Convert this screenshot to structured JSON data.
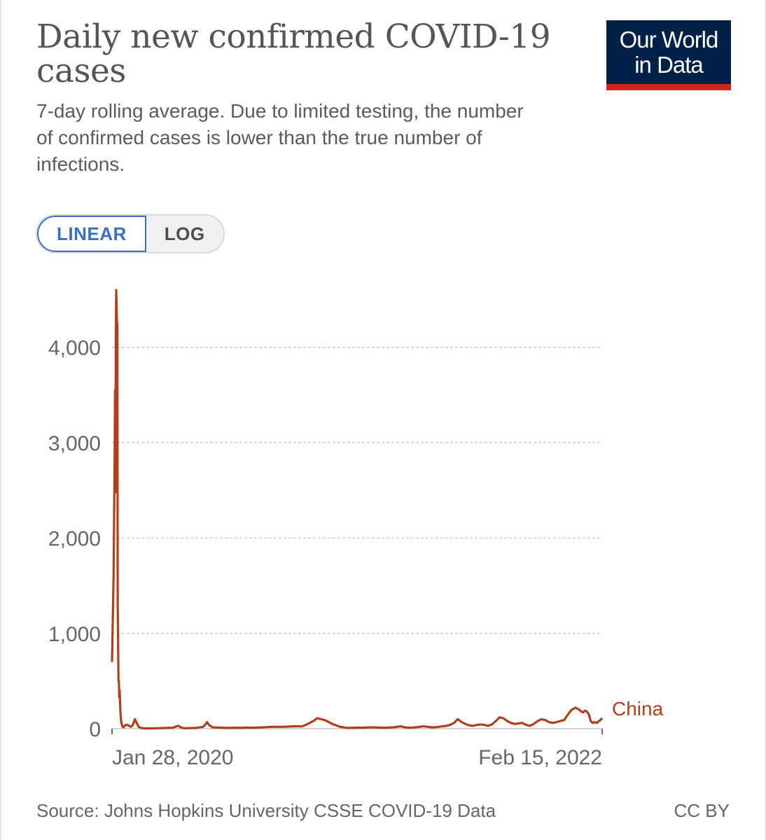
{
  "header": {
    "title": "Daily new confirmed COVID-19 cases",
    "subtitle": "7-day rolling average. Due to limited testing, the number of confirmed cases is lower than the true number of infections."
  },
  "logo": {
    "line1": "Our World",
    "line2": "in Data"
  },
  "scale_toggle": {
    "linear_label": "LINEAR",
    "log_label": "LOG",
    "selected": "LINEAR"
  },
  "footer": {
    "source": "Source: Johns Hopkins University CSSE COVID-19 Data",
    "license": "CC BY"
  },
  "colors": {
    "series": "#b13f1c",
    "logo_bg": "#002147",
    "logo_accent": "#ce261e",
    "selected": "#3a6fc4"
  },
  "chart_data": {
    "type": "line",
    "title": "Daily new confirmed COVID-19 cases",
    "xlabel": "",
    "ylabel": "",
    "ylim": [
      0,
      4600
    ],
    "y_ticks": [
      0,
      1000,
      2000,
      3000,
      4000
    ],
    "y_tick_labels": [
      "0",
      "1,000",
      "2,000",
      "3,000",
      "4,000"
    ],
    "x_tick_labels": [
      "Jan 28, 2020",
      "Feb 15, 2022"
    ],
    "x_start_label": "Jan 28, 2020",
    "x_end_label": "Feb 15, 2022",
    "grid": true,
    "series": [
      {
        "name": "China",
        "x": [
          0,
          4,
          7,
          8,
          9,
          10,
          11,
          13,
          14,
          15,
          16,
          17,
          18,
          19,
          20,
          21,
          22,
          23,
          24,
          25,
          26,
          27,
          28,
          30,
          33,
          36,
          40,
          45,
          50,
          55,
          60,
          65,
          70,
          73,
          75,
          78,
          82,
          90,
          100,
          120,
          140,
          160,
          170,
          175,
          180,
          190,
          220,
          240,
          245,
          250,
          255,
          265,
          300,
          330,
          340,
          350,
          370,
          400,
          420,
          450,
          480,
          500,
          510,
          520,
          530,
          540,
          560,
          580,
          600,
          610,
          615,
          620,
          640,
          650,
          660,
          680,
          700,
          720,
          740,
          750,
          760,
          770,
          780,
          790,
          800,
          810,
          820,
          830,
          840,
          850,
          860,
          870,
          880,
          890,
          900,
          910,
          920,
          930,
          940,
          950,
          960,
          970,
          980,
          990,
          1000,
          1010,
          1020,
          1030,
          1040,
          1050,
          1060,
          1070,
          1080,
          1090,
          1100,
          1110,
          1120,
          1130,
          1140,
          1150,
          1160,
          1170,
          1180,
          1190,
          1200,
          1210,
          1220,
          1230,
          1235,
          1240,
          1245,
          1250,
          1255,
          1260,
          1265,
          1270,
          1275,
          1280,
          1285,
          1290
        ],
        "values": [
          700,
          1600,
          2900,
          3550,
          2480,
          4100,
          4600,
          4250,
          4250,
          1300,
          900,
          500,
          500,
          330,
          400,
          300,
          190,
          120,
          80,
          60,
          40,
          30,
          20,
          15,
          30,
          40,
          40,
          30,
          20,
          40,
          100,
          60,
          20,
          15,
          10,
          8,
          5,
          3,
          3,
          5,
          8,
          10,
          25,
          30,
          15,
          5,
          8,
          20,
          40,
          70,
          40,
          15,
          8,
          10,
          8,
          12,
          10,
          15,
          20,
          20,
          25,
          25,
          40,
          60,
          80,
          110,
          90,
          50,
          20,
          15,
          10,
          8,
          10,
          12,
          10,
          15,
          12,
          10,
          15,
          20,
          25,
          15,
          10,
          12,
          15,
          20,
          25,
          20,
          15,
          15,
          20,
          25,
          30,
          40,
          60,
          100,
          70,
          50,
          35,
          30,
          40,
          45,
          40,
          30,
          45,
          80,
          120,
          110,
          80,
          60,
          50,
          55,
          60,
          40,
          30,
          50,
          80,
          100,
          90,
          70,
          60,
          70,
          80,
          90,
          150,
          200,
          220,
          200,
          180,
          170,
          190,
          180,
          150,
          80,
          60,
          70,
          60,
          75,
          90,
          110
        ]
      }
    ]
  }
}
